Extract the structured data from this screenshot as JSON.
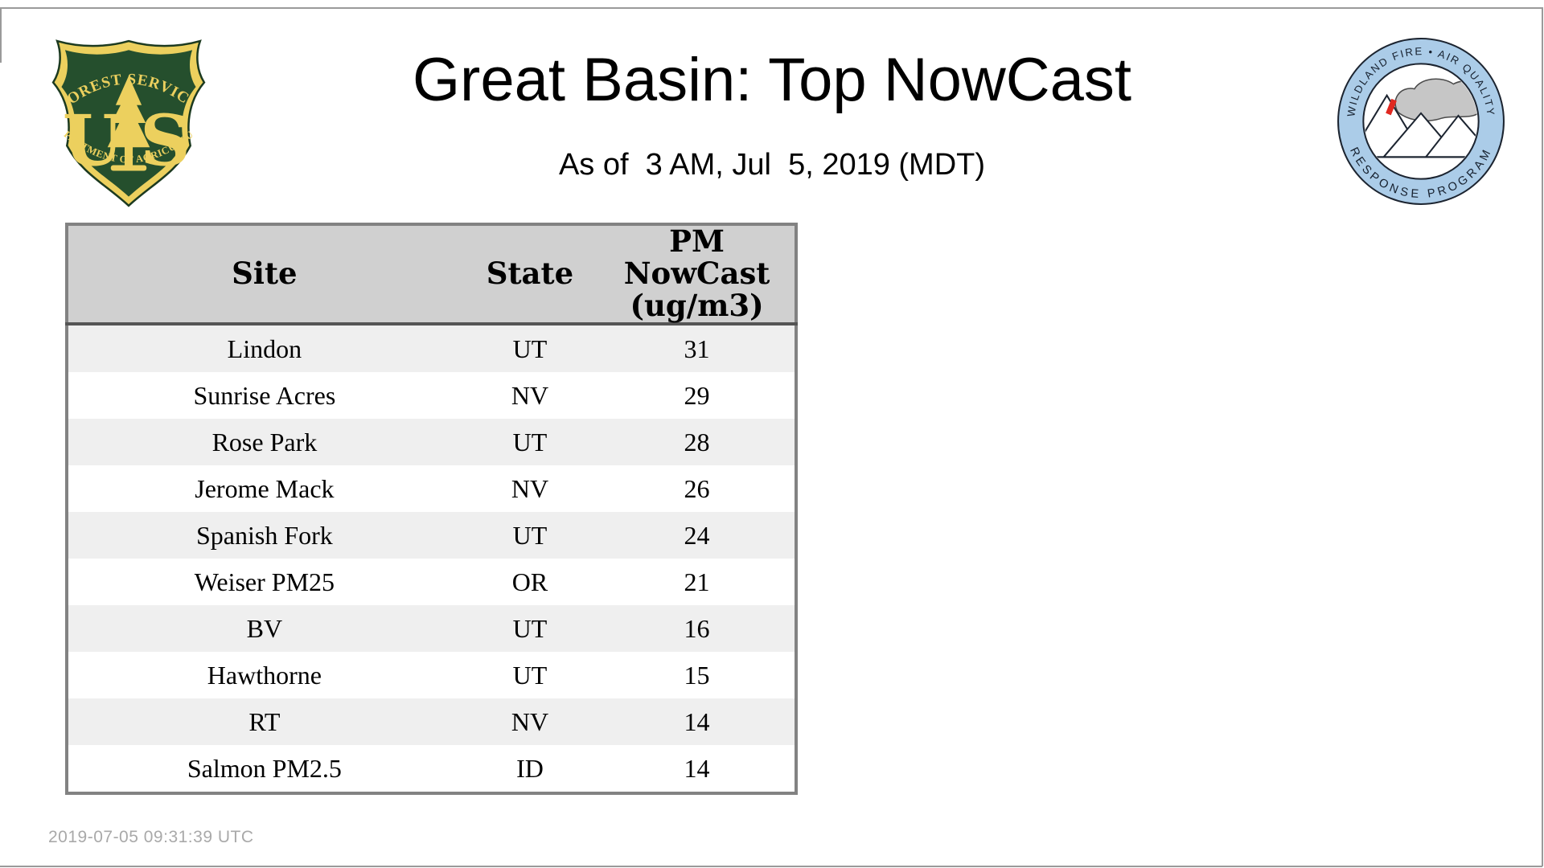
{
  "page": {
    "title": "Great Basin: Top NowCast",
    "subtitle": "As of  3 AM, Jul  5, 2019 (MDT)",
    "footer_timestamp": "2019-07-05 09:31:39 UTC"
  },
  "logos": {
    "forest_service": {
      "arc_top": "FOREST SERVICE",
      "arc_bottom": "DEPARTMENT OF AGRICULTURE",
      "monogram_left": "U",
      "monogram_right": "S",
      "colors": {
        "shield_green": "#254f2d",
        "gold": "#ecd05e",
        "outline": "#1c3a20"
      }
    },
    "air_quality_program": {
      "arc_top": "WILDLAND FIRE • AIR QUALITY",
      "arc_bottom": "RESPONSE PROGRAM",
      "colors": {
        "ring_blue": "#abcce8",
        "smoke_gray": "#c6c6c6",
        "flame_red": "#e02820",
        "line_dark": "#1c2430"
      }
    }
  },
  "table": {
    "headers": {
      "site": "Site",
      "state": "State",
      "pm": "PM\nNowCast\n(ug/m3)"
    },
    "rows": [
      {
        "site": "Lindon",
        "state": "UT",
        "value": "31"
      },
      {
        "site": "Sunrise Acres",
        "state": "NV",
        "value": "29"
      },
      {
        "site": "Rose Park",
        "state": "UT",
        "value": "28"
      },
      {
        "site": "Jerome Mack",
        "state": "NV",
        "value": "26"
      },
      {
        "site": "Spanish Fork",
        "state": "UT",
        "value": "24"
      },
      {
        "site": "Weiser PM25",
        "state": "OR",
        "value": "21"
      },
      {
        "site": "BV",
        "state": "UT",
        "value": "16"
      },
      {
        "site": "Hawthorne",
        "state": "UT",
        "value": "15"
      },
      {
        "site": "RT",
        "state": "NV",
        "value": "14"
      },
      {
        "site": "Salmon PM2.5",
        "state": "ID",
        "value": "14"
      }
    ],
    "colors": {
      "header_bg": "#d0d0d0",
      "stripe_bg": "#efefef",
      "border": "#828282",
      "header_rule": "#555555"
    }
  },
  "chart_data": {
    "type": "table",
    "title": "Great Basin: Top NowCast",
    "as_of": "3 AM, Jul 5, 2019 (MDT)",
    "columns": [
      "Site",
      "State",
      "PM NowCast (ug/m3)"
    ],
    "rows": [
      [
        "Lindon",
        "UT",
        31
      ],
      [
        "Sunrise Acres",
        "NV",
        29
      ],
      [
        "Rose Park",
        "UT",
        28
      ],
      [
        "Jerome Mack",
        "NV",
        26
      ],
      [
        "Spanish Fork",
        "UT",
        24
      ],
      [
        "Weiser PM25",
        "OR",
        21
      ],
      [
        "BV",
        "UT",
        16
      ],
      [
        "Hawthorne",
        "UT",
        15
      ],
      [
        "RT",
        "NV",
        14
      ],
      [
        "Salmon PM2.5",
        "ID",
        14
      ]
    ]
  }
}
